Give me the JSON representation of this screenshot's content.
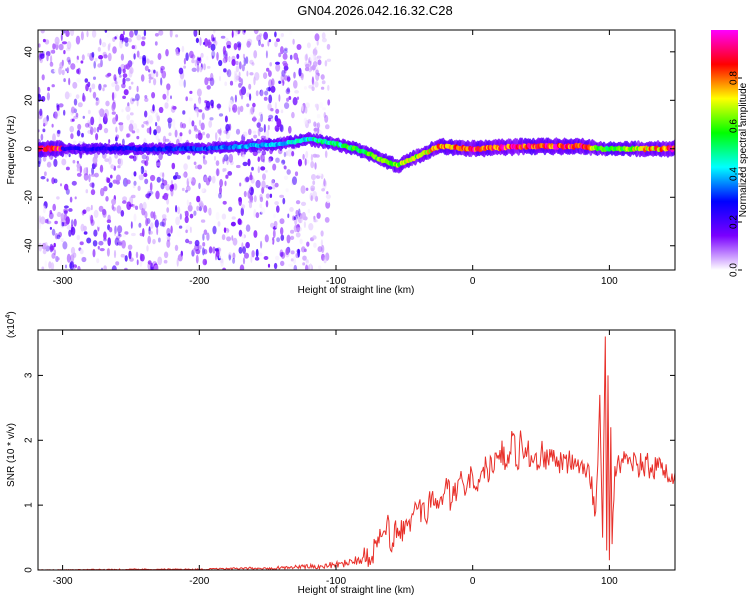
{
  "figure": {
    "title": "GN04.2026.042.16.32.C28"
  },
  "chart_data": [
    {
      "type": "heatmap",
      "title": "",
      "xlabel": "Height of straight line (km)",
      "ylabel": "Frequency (Hz)",
      "xlim": [
        -318,
        148
      ],
      "ylim": [
        -50,
        49
      ],
      "xticks": [
        -300,
        -200,
        -100,
        0,
        100
      ],
      "yticks": [
        -40,
        -20,
        0,
        20,
        40
      ],
      "colorbar": {
        "label": "Normalized spectral amplitude",
        "range": [
          0,
          1
        ],
        "ticks": [
          "0.0",
          "0.2",
          "0.4",
          "0.6",
          "0.8"
        ],
        "colormap": [
          "#ffffff",
          "#7a00ff",
          "#0000ff",
          "#00ffff",
          "#00ff00",
          "#ffff00",
          "#ff0000",
          "#ff00ff"
        ]
      },
      "noise_region_km": [
        -318,
        -105
      ],
      "ridge": [
        {
          "x": -300,
          "f": 0,
          "a": 0.25
        },
        {
          "x": -250,
          "f": 0,
          "a": 0.3
        },
        {
          "x": -200,
          "f": 0,
          "a": 0.35
        },
        {
          "x": -170,
          "f": 1,
          "a": 0.4
        },
        {
          "x": -140,
          "f": 2,
          "a": 0.45
        },
        {
          "x": -120,
          "f": 4,
          "a": 0.5
        },
        {
          "x": -100,
          "f": 2,
          "a": 0.55
        },
        {
          "x": -80,
          "f": -1,
          "a": 0.65
        },
        {
          "x": -65,
          "f": -5,
          "a": 0.7
        },
        {
          "x": -55,
          "f": -7,
          "a": 0.72
        },
        {
          "x": -40,
          "f": -3,
          "a": 0.75
        },
        {
          "x": -25,
          "f": 1,
          "a": 0.85
        },
        {
          "x": 0,
          "f": 0,
          "a": 0.95
        },
        {
          "x": 40,
          "f": 1,
          "a": 0.95
        },
        {
          "x": 80,
          "f": 1,
          "a": 0.95
        },
        {
          "x": 95,
          "f": 0,
          "a": 0.6
        },
        {
          "x": 110,
          "f": 0,
          "a": 0.7
        },
        {
          "x": 148,
          "f": 0,
          "a": 0.95
        }
      ]
    },
    {
      "type": "line",
      "title": "",
      "xlabel": "Height of straight line (km)",
      "ylabel": "SNR (10 * v/v)",
      "scale_label": "(x10",
      "scale_exponent": "4",
      "xlim": [
        -318,
        148
      ],
      "ylim": [
        0,
        3.7
      ],
      "xticks": [
        -300,
        -200,
        -100,
        0,
        100
      ],
      "yticks": [
        0,
        1,
        2,
        3
      ],
      "color": "#e8302a",
      "series": [
        {
          "x": [
            -318,
            -250,
            -200,
            -150,
            -110,
            -95,
            -80,
            -70,
            -65,
            -62,
            -60,
            -55,
            -50,
            -45,
            -40,
            -35,
            -30,
            -25,
            -20,
            -15,
            -10,
            -5,
            0,
            5,
            10,
            15,
            20,
            25,
            30,
            33,
            35,
            38,
            40,
            45,
            50,
            55,
            60,
            65,
            70,
            75,
            80,
            85,
            90,
            93,
            95,
            97,
            98,
            99,
            100,
            101,
            102,
            104,
            106,
            110,
            120,
            130,
            140,
            148
          ],
          "y": [
            0.0,
            0.01,
            0.01,
            0.03,
            0.06,
            0.1,
            0.2,
            0.35,
            0.6,
            0.85,
            0.3,
            0.65,
            0.55,
            0.8,
            0.95,
            0.8,
            1.15,
            0.95,
            1.3,
            1.05,
            1.4,
            1.2,
            1.45,
            1.35,
            1.6,
            1.5,
            1.85,
            1.6,
            2.1,
            1.55,
            2.15,
            1.75,
            1.85,
            1.7,
            1.8,
            1.7,
            1.72,
            1.7,
            1.68,
            1.72,
            1.68,
            1.6,
            0.9,
            2.7,
            0.5,
            3.6,
            0.3,
            3.0,
            0.15,
            2.2,
            0.4,
            1.6,
            1.68,
            1.65,
            1.62,
            1.58,
            1.54,
            1.5
          ]
        }
      ]
    }
  ]
}
